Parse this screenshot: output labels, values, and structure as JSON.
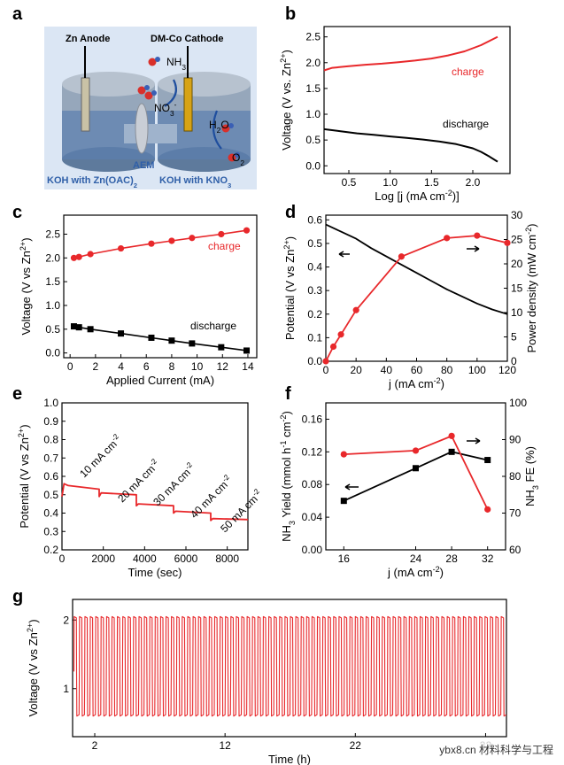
{
  "panel_labels": [
    "a",
    "b",
    "c",
    "d",
    "e",
    "f",
    "g"
  ],
  "schematic": {
    "anode_label": "Zn Anode",
    "cathode_label": "DM-Co Cathode",
    "nh3_label": "NH3",
    "no3_label": "NO3-",
    "h2o_label": "H2O",
    "o2_label": "O2",
    "aem_label": "AEM",
    "left_electrolyte": "KOH with Zn(OAC)2",
    "right_electrolyte": "KOH with KNO3"
  },
  "watermark": "ybx8.cn 材料科学与工程",
  "colors": {
    "red": "#e8282b",
    "black": "#000000",
    "schematic_bg": "#dbe6f4",
    "text_blue": "#2f5fa8"
  },
  "chart_data": [
    {
      "id": "b",
      "type": "line",
      "xlabel": "Log [j (mA cm-2)]",
      "ylabel": "Voltage (V vs. Zn2+)",
      "xlim": [
        0.2,
        2.45
      ],
      "ylim": [
        -0.15,
        2.7
      ],
      "xticks": [
        "0.5",
        "1.0",
        "1.5",
        "2.0"
      ],
      "yticks": [
        "0.0",
        "0.5",
        "1.0",
        "1.5",
        "2.0",
        "2.5"
      ],
      "series": [
        {
          "name": "charge",
          "color": "#e8282b",
          "x": [
            0.2,
            0.3,
            0.5,
            0.7,
            0.9,
            1.1,
            1.3,
            1.5,
            1.7,
            1.9,
            2.1,
            2.3
          ],
          "y": [
            1.85,
            1.9,
            1.93,
            1.96,
            1.98,
            2.01,
            2.04,
            2.08,
            2.14,
            2.22,
            2.34,
            2.5
          ]
        },
        {
          "name": "discharge",
          "color": "#000000",
          "x": [
            0.2,
            0.4,
            0.6,
            0.8,
            1.0,
            1.2,
            1.4,
            1.6,
            1.8,
            2.0,
            2.1,
            2.2,
            2.3
          ],
          "y": [
            0.71,
            0.67,
            0.63,
            0.6,
            0.57,
            0.54,
            0.51,
            0.47,
            0.42,
            0.34,
            0.27,
            0.18,
            0.08
          ]
        }
      ]
    },
    {
      "id": "c",
      "type": "line",
      "xlabel": "Applied Current (mA)",
      "ylabel": "Voltage (V vs Zn2+)",
      "xlim": [
        -0.5,
        14.7
      ],
      "ylim": [
        -0.1,
        2.9
      ],
      "xticks": [
        "0",
        "2",
        "4",
        "6",
        "8",
        "10",
        "12",
        "14"
      ],
      "yticks": [
        "0.0",
        "0.5",
        "1.0",
        "1.5",
        "2.0",
        "2.5"
      ],
      "series": [
        {
          "name": "charge",
          "color": "#e8282b",
          "marker": "circle",
          "x": [
            0.3,
            0.7,
            1.6,
            4,
            6.4,
            8,
            9.6,
            11.9,
            13.9
          ],
          "y": [
            2.0,
            2.02,
            2.08,
            2.2,
            2.3,
            2.36,
            2.42,
            2.5,
            2.58
          ]
        },
        {
          "name": "discharge",
          "color": "#000000",
          "marker": "square",
          "x": [
            0.3,
            0.7,
            1.6,
            4,
            6.4,
            8,
            9.6,
            11.9,
            13.9
          ],
          "y": [
            0.56,
            0.54,
            0.5,
            0.41,
            0.32,
            0.26,
            0.2,
            0.12,
            0.05
          ]
        }
      ]
    },
    {
      "id": "d",
      "type": "line",
      "xlabel": "j (mA cm-2)",
      "ylabel": "Potential (V vs Zn2+)",
      "y2label": "Power density (mW cm-2)",
      "xlim": [
        0,
        120
      ],
      "ylim": [
        0,
        0.62
      ],
      "y2lim": [
        0,
        30
      ],
      "xticks": [
        "0",
        "20",
        "40",
        "60",
        "80",
        "100",
        "120"
      ],
      "yticks": [
        "0.0",
        "0.1",
        "0.2",
        "0.3",
        "0.4",
        "0.5",
        "0.6"
      ],
      "y2ticks": [
        "0",
        "5",
        "10",
        "15",
        "20",
        "25",
        "30"
      ],
      "series": [
        {
          "name": "potential",
          "axis": "left",
          "color": "#000000",
          "x": [
            0,
            10,
            20,
            30,
            40,
            50,
            60,
            70,
            80,
            90,
            100,
            110,
            120
          ],
          "y": [
            0.58,
            0.55,
            0.52,
            0.48,
            0.445,
            0.41,
            0.375,
            0.34,
            0.305,
            0.275,
            0.245,
            0.22,
            0.2
          ]
        },
        {
          "name": "power density",
          "axis": "right",
          "color": "#e8282b",
          "marker": "circle",
          "x": [
            0,
            5,
            10,
            20,
            50,
            80,
            100,
            120
          ],
          "y": [
            0,
            3,
            5.5,
            10.5,
            21.5,
            25.3,
            25.8,
            24.3
          ]
        }
      ]
    },
    {
      "id": "e",
      "type": "line",
      "xlabel": "Time (sec)",
      "ylabel": "Potential (V vs Zn2+)",
      "xlim": [
        0,
        9000
      ],
      "ylim": [
        0.2,
        1.0
      ],
      "xticks": [
        "0",
        "2000",
        "4000",
        "6000",
        "8000"
      ],
      "yticks": [
        "0.2",
        "0.3",
        "0.4",
        "0.5",
        "0.6",
        "0.7",
        "0.8",
        "0.9",
        "1.0"
      ],
      "annotations": [
        "10 mA cm-2",
        "20 mA cm-2",
        "30 mA cm-2",
        "40 mA cm-2",
        "50 mA cm-2"
      ],
      "series": [
        {
          "name": "potential",
          "color": "#e8282b",
          "x": [
            0,
            100,
            300,
            1800,
            1800,
            1900,
            3600,
            3600,
            3700,
            5400,
            5400,
            5500,
            7200,
            7200,
            7300,
            9000
          ],
          "y": [
            0.49,
            0.56,
            0.55,
            0.53,
            0.49,
            0.51,
            0.5,
            0.44,
            0.45,
            0.44,
            0.4,
            0.41,
            0.4,
            0.36,
            0.37,
            0.365
          ]
        }
      ]
    },
    {
      "id": "f",
      "type": "line",
      "xlabel": "j (mA cm-2)",
      "ylabel": "NH3 Yield (mmol h-1 cm-2)",
      "y2label": "NH3 FE (%)",
      "xlim": [
        14,
        34
      ],
      "ylim": [
        0,
        0.18
      ],
      "y2lim": [
        60,
        100
      ],
      "xticks": [
        "16",
        "24",
        "28",
        "32"
      ],
      "yticks": [
        "0.00",
        "0.04",
        "0.08",
        "0.12",
        "0.16"
      ],
      "y2ticks": [
        "60",
        "70",
        "80",
        "90",
        "100"
      ],
      "series": [
        {
          "name": "NH3 yield",
          "axis": "left",
          "color": "#000000",
          "marker": "square",
          "x": [
            16,
            24,
            28,
            32
          ],
          "y": [
            0.06,
            0.1,
            0.12,
            0.11
          ]
        },
        {
          "name": "NH3 FE",
          "axis": "right",
          "color": "#e8282b",
          "marker": "circle",
          "x": [
            16,
            24,
            28,
            32
          ],
          "y": [
            86,
            87,
            91,
            71
          ]
        }
      ]
    },
    {
      "id": "g",
      "type": "line",
      "xlabel": "Time (h)",
      "ylabel": "Voltage (V vs Zn2+)",
      "xlim": [
        0.3,
        33.6
      ],
      "ylim": [
        0.3,
        2.3
      ],
      "xticks": [
        "2",
        "12",
        "22",
        "32"
      ],
      "yticks": [
        "1",
        "2"
      ],
      "cycle": {
        "count": 80,
        "charge_v": 2.05,
        "discharge_v": 0.6,
        "mid_v": 1.25,
        "start_h": 0.4,
        "end_h": 33.6
      },
      "series": [
        {
          "name": "voltage",
          "color": "#e8282b"
        }
      ]
    }
  ]
}
